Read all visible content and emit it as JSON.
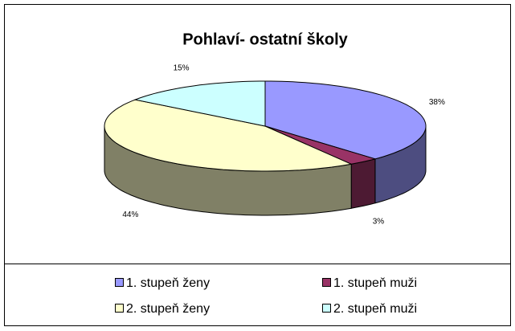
{
  "chart_data": {
    "type": "pie3d",
    "title": "Pohlaví- ostatní školy",
    "categories": [
      "1. stupeň ženy",
      "1. stupeň muži",
      "2. stupeň ženy",
      "2. stupeň muži"
    ],
    "values": [
      38,
      3,
      44,
      15
    ],
    "value_labels": [
      "38%",
      "3%",
      "44%",
      "15%"
    ],
    "colors": [
      "#9999ff",
      "#993366",
      "#ffffcc",
      "#ccffff"
    ],
    "legend": "bottom"
  }
}
